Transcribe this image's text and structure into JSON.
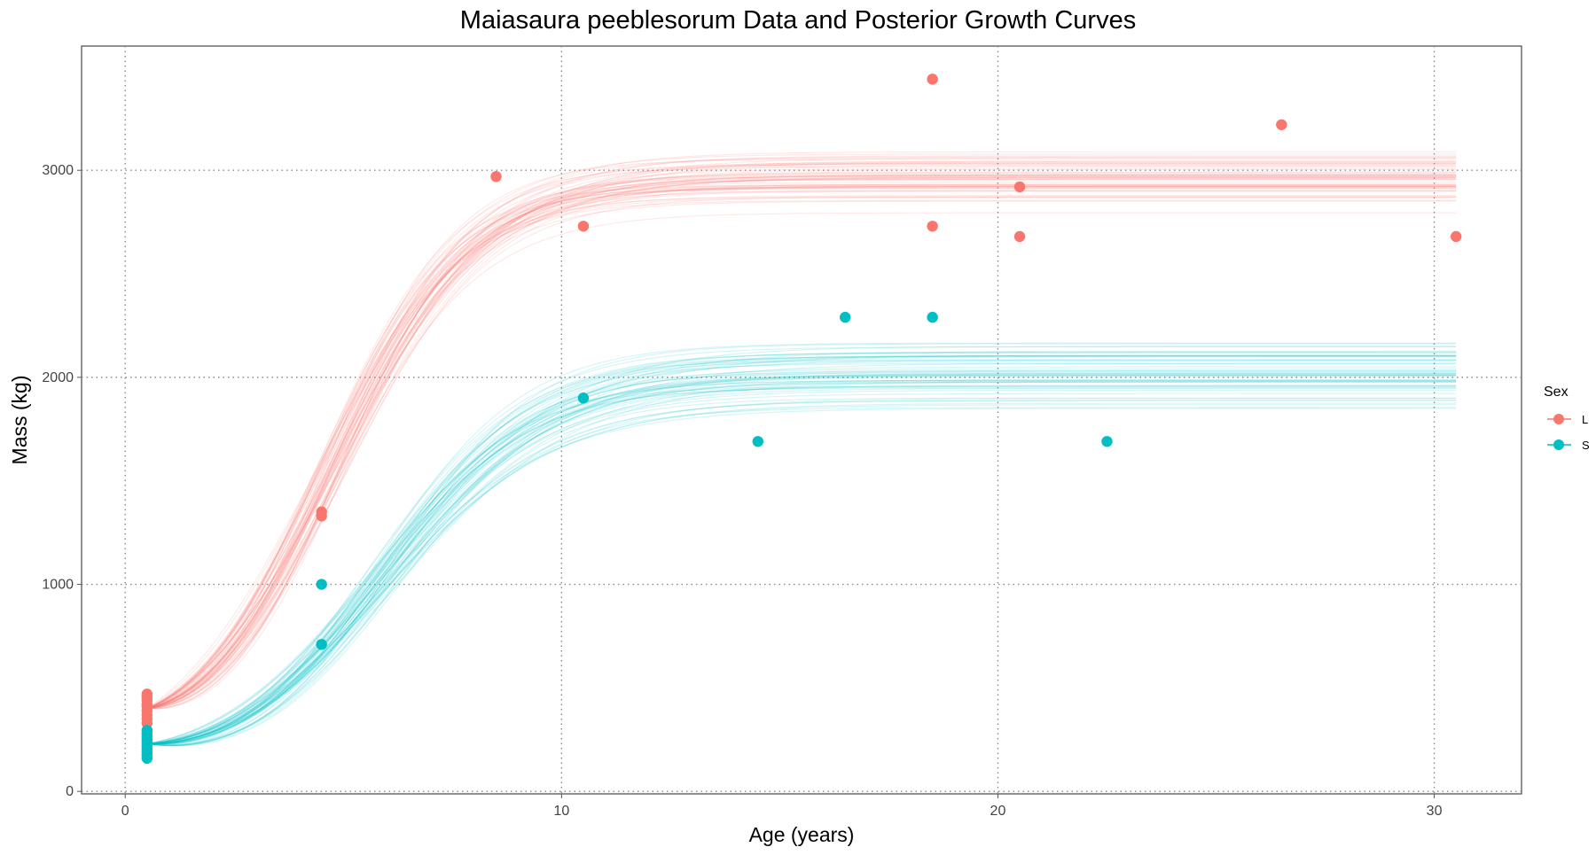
{
  "chart_data": {
    "type": "line",
    "title": "Maiasaura peeblesorum Data and Posterior Growth Curves",
    "xlabel": "Age (years)",
    "ylabel": "Mass (kg)",
    "xlim": [
      -1,
      32
    ],
    "ylim": [
      -12,
      3600
    ],
    "x_ticks": [
      0,
      10,
      20,
      30
    ],
    "x_tick_labels": [
      "0",
      "10",
      "20",
      "30"
    ],
    "y_ticks": [
      0,
      1000,
      2000,
      3000
    ],
    "y_tick_labels": [
      "0",
      "1000",
      "2000",
      "3000"
    ],
    "grid": true,
    "grid_style": "dotted",
    "legend": {
      "title": "Sex",
      "placement": "right",
      "entries": [
        {
          "label": "L",
          "color": "#F8766D"
        },
        {
          "label": "S",
          "color": "#00BFC4"
        }
      ]
    },
    "points": {
      "L": {
        "color": "#F8766D",
        "x": [
          0.5,
          0.5,
          0.5,
          0.5,
          0.5,
          0.5,
          0.5,
          0.5,
          0.5,
          0.5,
          4.5,
          4.5,
          8.5,
          10.5,
          18.5,
          18.5,
          20.5,
          20.5,
          26.5,
          30.5
        ],
        "y": [
          330,
          350,
          370,
          390,
          410,
          420,
          440,
          450,
          460,
          470,
          1330,
          1350,
          2970,
          2730,
          3440,
          2730,
          2920,
          2680,
          3220,
          2680
        ]
      },
      "S": {
        "color": "#00BFC4",
        "x": [
          0.5,
          0.5,
          0.5,
          0.5,
          0.5,
          0.5,
          0.5,
          0.5,
          0.5,
          0.5,
          4.5,
          4.5,
          10.5,
          14.5,
          16.5,
          18.5,
          22.5
        ],
        "y": [
          160,
          175,
          190,
          205,
          220,
          235,
          250,
          265,
          280,
          295,
          1000,
          710,
          1900,
          1690,
          2290,
          2290,
          1690
        ]
      }
    },
    "posterior_curves": {
      "model": "logistic",
      "x_range": [
        0.5,
        30.5
      ],
      "L": {
        "color": "#F8766D",
        "count": 60,
        "asymptote_mean": 2970,
        "asymptote_range": [
          2790,
          3120
        ],
        "midpoint_age_mean": 4.6,
        "rate_mean": 0.6,
        "initial_mass_approx": 400
      },
      "S": {
        "color": "#00BFC4",
        "count": 60,
        "asymptote_mean": 2020,
        "asymptote_range": [
          1850,
          2230
        ],
        "midpoint_age_mean": 5.9,
        "rate_mean": 0.55,
        "initial_mass_approx": 230
      }
    }
  }
}
